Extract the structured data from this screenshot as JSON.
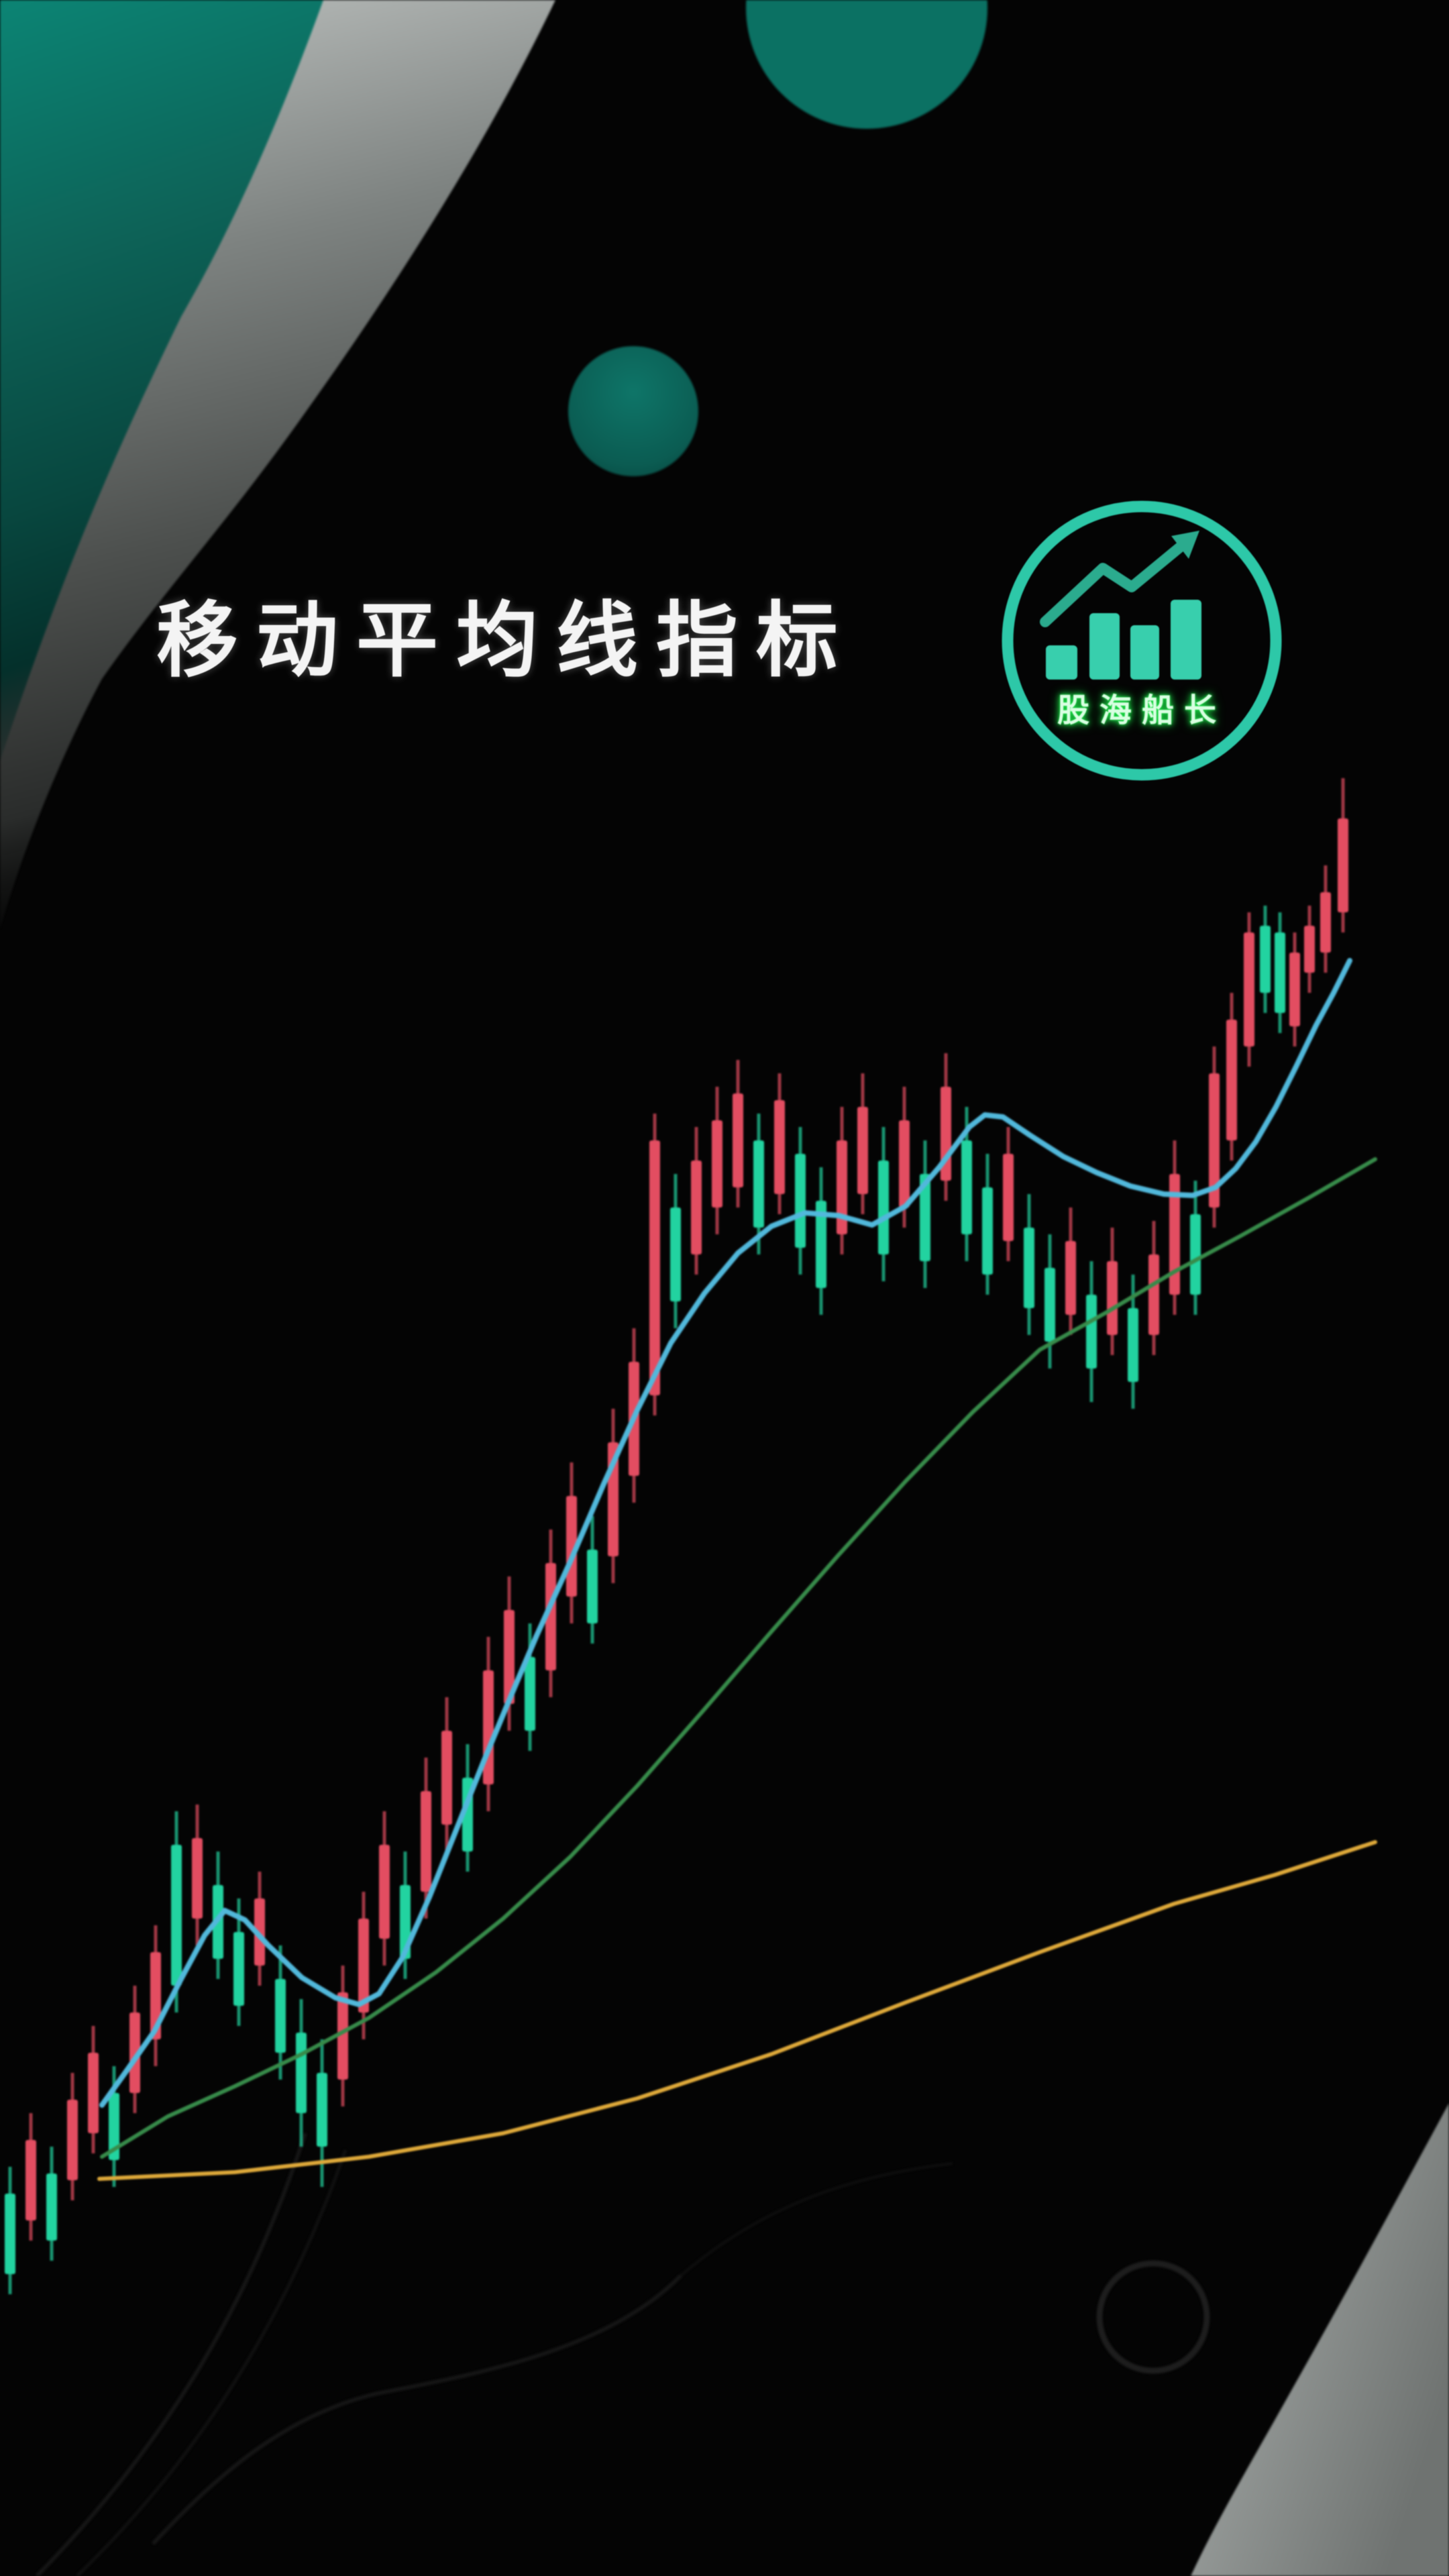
{
  "header": {
    "title": "移动平均线指标"
  },
  "logo": {
    "brand": "股海船长",
    "icons": [
      "logo-bars-icon",
      "logo-trend-arrow-icon",
      "logo-ring"
    ]
  },
  "theme": {
    "background": "#040404",
    "title_white": "#f4f4f4",
    "teal_blob_top": "#0c8373",
    "teal_circle": "#0b7163",
    "gray_band": "#bcc0be",
    "ring_teal": "#2dc8a8",
    "logo_bars_teal": "#38cfad",
    "logo_arrow_teal": "#2bab8e",
    "brand_green": "#1fe24a"
  },
  "chart_data": {
    "type": "candlestick",
    "title": "",
    "xlabel": "",
    "ylabel": "",
    "axes_visible": false,
    "grid": false,
    "background": "#000000",
    "description": "Uptrending stock candlestick chart: initial small hill, pullback, strong rally, high consolidation, shallow dip, explosive final rally to upper right. Three moving averages: fast (blue), medium (green), slow (yellow). Values are pixel coordinates in the 2160x3840 frame (y down).",
    "up_color": "#dd4f62",
    "down_color": "#28d1a0",
    "candle_width": 16,
    "candles": [
      [
        15,
        3230,
        3270,
        3390,
        3420,
        "g"
      ],
      [
        46,
        3150,
        3190,
        3310,
        3340,
        "r"
      ],
      [
        77,
        3200,
        3240,
        3340,
        3370,
        "g"
      ],
      [
        108,
        3090,
        3130,
        3250,
        3280,
        "r"
      ],
      [
        139,
        3020,
        3060,
        3180,
        3210,
        "r"
      ],
      [
        170,
        3080,
        3120,
        3220,
        3260,
        "g"
      ],
      [
        201,
        2960,
        3000,
        3120,
        3150,
        "r"
      ],
      [
        232,
        2870,
        2910,
        3040,
        3080,
        "r"
      ],
      [
        263,
        2700,
        2750,
        2960,
        3000,
        "g"
      ],
      [
        294,
        2690,
        2740,
        2860,
        2900,
        "r"
      ],
      [
        325,
        2760,
        2810,
        2920,
        2950,
        "g"
      ],
      [
        356,
        2830,
        2880,
        2990,
        3020,
        "g"
      ],
      [
        387,
        2790,
        2830,
        2930,
        2960,
        "r"
      ],
      [
        418,
        2900,
        2950,
        3060,
        3100,
        "g"
      ],
      [
        449,
        2980,
        3030,
        3150,
        3200,
        "g"
      ],
      [
        480,
        3040,
        3090,
        3200,
        3260,
        "g"
      ],
      [
        511,
        2930,
        2970,
        3100,
        3140,
        "r"
      ],
      [
        542,
        2820,
        2860,
        3000,
        3040,
        "r"
      ],
      [
        573,
        2700,
        2750,
        2890,
        2930,
        "r"
      ],
      [
        604,
        2760,
        2810,
        2920,
        2950,
        "g"
      ],
      [
        635,
        2620,
        2670,
        2820,
        2860,
        "r"
      ],
      [
        666,
        2530,
        2580,
        2720,
        2760,
        "r"
      ],
      [
        697,
        2600,
        2650,
        2760,
        2790,
        "g"
      ],
      [
        728,
        2440,
        2490,
        2660,
        2700,
        "r"
      ],
      [
        759,
        2350,
        2400,
        2540,
        2580,
        "r"
      ],
      [
        790,
        2420,
        2470,
        2580,
        2610,
        "g"
      ],
      [
        821,
        2280,
        2330,
        2490,
        2530,
        "r"
      ],
      [
        852,
        2180,
        2230,
        2380,
        2420,
        "r"
      ],
      [
        883,
        2260,
        2310,
        2420,
        2450,
        "g"
      ],
      [
        914,
        2100,
        2150,
        2320,
        2360,
        "r"
      ],
      [
        945,
        1980,
        2030,
        2200,
        2240,
        "r"
      ],
      [
        976,
        1660,
        1700,
        2080,
        2110,
        "r"
      ],
      [
        1007,
        1750,
        1800,
        1940,
        1980,
        "g"
      ],
      [
        1038,
        1680,
        1730,
        1870,
        1900,
        "r"
      ],
      [
        1069,
        1620,
        1670,
        1800,
        1840,
        "r"
      ],
      [
        1100,
        1580,
        1630,
        1770,
        1800,
        "r"
      ],
      [
        1131,
        1660,
        1700,
        1830,
        1870,
        "g"
      ],
      [
        1162,
        1600,
        1640,
        1780,
        1810,
        "r"
      ],
      [
        1193,
        1680,
        1720,
        1860,
        1900,
        "g"
      ],
      [
        1224,
        1740,
        1790,
        1920,
        1960,
        "g"
      ],
      [
        1255,
        1650,
        1700,
        1840,
        1870,
        "r"
      ],
      [
        1286,
        1600,
        1650,
        1780,
        1810,
        "r"
      ],
      [
        1317,
        1680,
        1730,
        1870,
        1910,
        "g"
      ],
      [
        1348,
        1620,
        1670,
        1800,
        1830,
        "r"
      ],
      [
        1379,
        1700,
        1750,
        1880,
        1920,
        "g"
      ],
      [
        1410,
        1570,
        1620,
        1760,
        1790,
        "r"
      ],
      [
        1441,
        1650,
        1700,
        1840,
        1880,
        "g"
      ],
      [
        1472,
        1720,
        1770,
        1900,
        1930,
        "g"
      ],
      [
        1503,
        1680,
        1720,
        1850,
        1880,
        "r"
      ],
      [
        1534,
        1780,
        1830,
        1950,
        1990,
        "g"
      ],
      [
        1565,
        1840,
        1890,
        2000,
        2040,
        "g"
      ],
      [
        1596,
        1800,
        1850,
        1960,
        1990,
        "r"
      ],
      [
        1627,
        1880,
        1930,
        2040,
        2090,
        "g"
      ],
      [
        1658,
        1830,
        1880,
        1990,
        2020,
        "r"
      ],
      [
        1689,
        1900,
        1950,
        2060,
        2100,
        "g"
      ],
      [
        1720,
        1820,
        1870,
        1990,
        2020,
        "r"
      ],
      [
        1751,
        1700,
        1750,
        1930,
        1960,
        "r"
      ],
      [
        1782,
        1760,
        1810,
        1930,
        1960,
        "g"
      ],
      [
        1810,
        1560,
        1600,
        1800,
        1830,
        "r"
      ],
      [
        1836,
        1480,
        1520,
        1700,
        1730,
        "r"
      ],
      [
        1862,
        1360,
        1390,
        1560,
        1590,
        "r"
      ],
      [
        1886,
        1350,
        1380,
        1480,
        1510,
        "g"
      ],
      [
        1908,
        1360,
        1390,
        1510,
        1540,
        "g"
      ],
      [
        1930,
        1390,
        1420,
        1530,
        1560,
        "r"
      ],
      [
        1952,
        1350,
        1380,
        1450,
        1480,
        "r"
      ],
      [
        1976,
        1290,
        1330,
        1420,
        1450,
        "r"
      ],
      [
        2002,
        1160,
        1220,
        1360,
        1390,
        "r"
      ]
    ],
    "ma_lines": [
      {
        "name": "ma-fast-blue",
        "color": "#55b7d8",
        "stroke_width": 8,
        "points": [
          [
            152,
            3138
          ],
          [
            190,
            3085
          ],
          [
            230,
            3028
          ],
          [
            270,
            2950
          ],
          [
            305,
            2885
          ],
          [
            335,
            2848
          ],
          [
            365,
            2862
          ],
          [
            400,
            2900
          ],
          [
            450,
            2948
          ],
          [
            500,
            2978
          ],
          [
            535,
            2988
          ],
          [
            565,
            2972
          ],
          [
            600,
            2918
          ],
          [
            640,
            2828
          ],
          [
            680,
            2728
          ],
          [
            720,
            2628
          ],
          [
            760,
            2532
          ],
          [
            800,
            2438
          ],
          [
            850,
            2328
          ],
          [
            900,
            2212
          ],
          [
            950,
            2102
          ],
          [
            1000,
            2002
          ],
          [
            1050,
            1928
          ],
          [
            1100,
            1868
          ],
          [
            1150,
            1828
          ],
          [
            1200,
            1808
          ],
          [
            1250,
            1812
          ],
          [
            1300,
            1826
          ],
          [
            1350,
            1798
          ],
          [
            1400,
            1740
          ],
          [
            1445,
            1680
          ],
          [
            1468,
            1662
          ],
          [
            1495,
            1665
          ],
          [
            1535,
            1692
          ],
          [
            1585,
            1724
          ],
          [
            1635,
            1748
          ],
          [
            1685,
            1768
          ],
          [
            1735,
            1780
          ],
          [
            1778,
            1782
          ],
          [
            1812,
            1770
          ],
          [
            1842,
            1742
          ],
          [
            1872,
            1702
          ],
          [
            1902,
            1650
          ],
          [
            1932,
            1590
          ],
          [
            1962,
            1528
          ],
          [
            1988,
            1480
          ],
          [
            2012,
            1432
          ]
        ]
      },
      {
        "name": "ma-medium-green",
        "color": "#3a8a4c",
        "stroke_width": 6,
        "points": [
          [
            152,
            3215
          ],
          [
            250,
            3155
          ],
          [
            350,
            3110
          ],
          [
            450,
            3062
          ],
          [
            550,
            3008
          ],
          [
            650,
            2940
          ],
          [
            750,
            2860
          ],
          [
            850,
            2768
          ],
          [
            950,
            2662
          ],
          [
            1050,
            2548
          ],
          [
            1150,
            2432
          ],
          [
            1250,
            2318
          ],
          [
            1350,
            2208
          ],
          [
            1450,
            2105
          ],
          [
            1550,
            2012
          ],
          [
            1650,
            1956
          ],
          [
            1750,
            1896
          ],
          [
            1850,
            1842
          ],
          [
            1950,
            1786
          ],
          [
            2050,
            1728
          ]
        ]
      },
      {
        "name": "ma-slow-yellow",
        "color": "#dca93f",
        "stroke_width": 6,
        "points": [
          [
            148,
            3248
          ],
          [
            350,
            3238
          ],
          [
            550,
            3215
          ],
          [
            750,
            3180
          ],
          [
            950,
            3128
          ],
          [
            1150,
            3062
          ],
          [
            1350,
            2985
          ],
          [
            1550,
            2910
          ],
          [
            1750,
            2838
          ],
          [
            1900,
            2795
          ],
          [
            2050,
            2746
          ]
        ]
      }
    ]
  }
}
